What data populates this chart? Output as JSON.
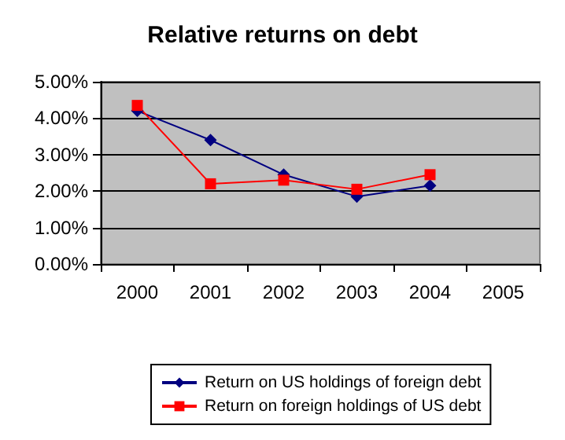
{
  "chart_data": {
    "type": "line",
    "title": "Relative returns on debt",
    "categories": [
      "2000",
      "2001",
      "2002",
      "2003",
      "2004",
      "2005"
    ],
    "series": [
      {
        "name": "Return on US holdings of foreign debt",
        "color": "#000080",
        "marker": "diamond",
        "values": [
          4.2,
          3.4,
          2.45,
          1.85,
          2.15,
          null
        ]
      },
      {
        "name": "Return on foreign holdings of US debt",
        "color": "#ff0000",
        "marker": "square",
        "values": [
          4.35,
          2.2,
          2.3,
          2.05,
          2.45,
          null
        ]
      }
    ],
    "ylim": [
      0,
      5
    ],
    "yticks": [
      {
        "value": 0,
        "label": "0.00%"
      },
      {
        "value": 1,
        "label": "1.00%"
      },
      {
        "value": 2,
        "label": "2.00%"
      },
      {
        "value": 3,
        "label": "3.00%"
      },
      {
        "value": 4,
        "label": "4.00%"
      },
      {
        "value": 5,
        "label": "5.00%"
      }
    ],
    "grid": "y",
    "legend": "bottom"
  }
}
